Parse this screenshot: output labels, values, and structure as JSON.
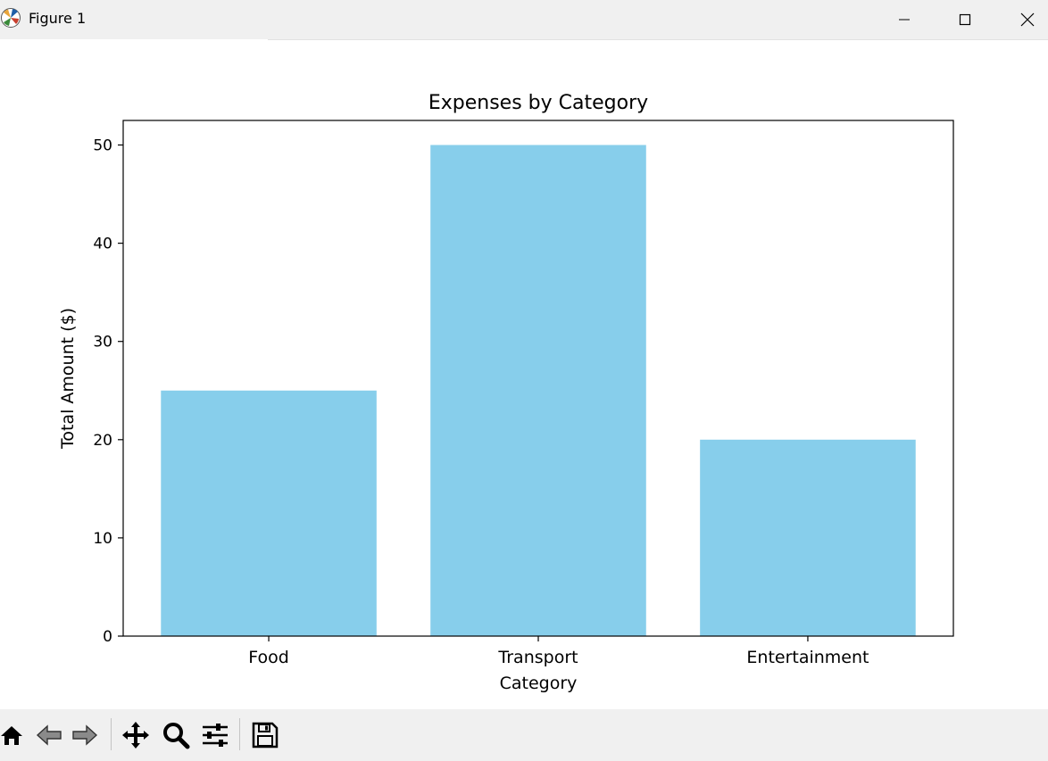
{
  "window": {
    "title": "Figure 1",
    "icon": "matplotlib-logo-icon"
  },
  "toolbar": {
    "buttons": [
      "home-icon",
      "back-icon",
      "forward-icon",
      "pan-icon",
      "zoom-icon",
      "configure-subplots-icon",
      "save-icon"
    ]
  },
  "chart_data": {
    "type": "bar",
    "title": "Expenses by Category",
    "xlabel": "Category",
    "ylabel": "Total Amount ($)",
    "categories": [
      "Food",
      "Transport",
      "Entertainment"
    ],
    "values": [
      25,
      50,
      20
    ],
    "ylim": [
      0,
      52.5
    ],
    "yticks": [
      0,
      10,
      20,
      30,
      40,
      50
    ],
    "bar_color": "#87ceeb",
    "grid": false
  }
}
